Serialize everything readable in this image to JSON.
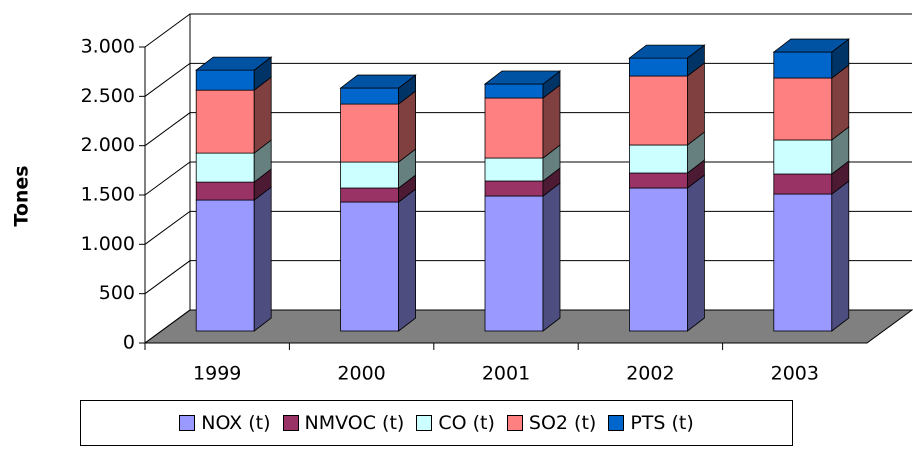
{
  "chart_data": {
    "type": "bar3d_stacked",
    "y_label": "Tones",
    "categories": [
      "1999",
      "2000",
      "2001",
      "2002",
      "2003"
    ],
    "series": [
      {
        "name": "NOX (t)",
        "color": "#9999ff",
        "values": [
          1327,
          1307,
          1368,
          1449,
          1388
        ]
      },
      {
        "name": "NMVOC (t)",
        "color": "#993366",
        "values": [
          182,
          142,
          152,
          152,
          203
        ]
      },
      {
        "name": "CO (t)",
        "color": "#ccffff",
        "values": [
          294,
          263,
          233,
          284,
          345
        ]
      },
      {
        "name": "SO2 (t)",
        "color": "#ff8080",
        "values": [
          638,
          588,
          608,
          699,
          628
        ]
      },
      {
        "name": "PTS (t)",
        "color": "#0066cc",
        "values": [
          203,
          162,
          142,
          182,
          263
        ]
      }
    ],
    "ylim": [
      0,
      3000
    ],
    "yticks": [
      0,
      500,
      {
        "value": 1000,
        "label": "1.000"
      },
      {
        "value": 1500,
        "label": "1.500"
      },
      {
        "value": 2000,
        "label": "2.000"
      },
      {
        "value": 2500,
        "label": "2.500"
      },
      {
        "value": 3000,
        "label": "3.000"
      }
    ],
    "grid": true
  }
}
